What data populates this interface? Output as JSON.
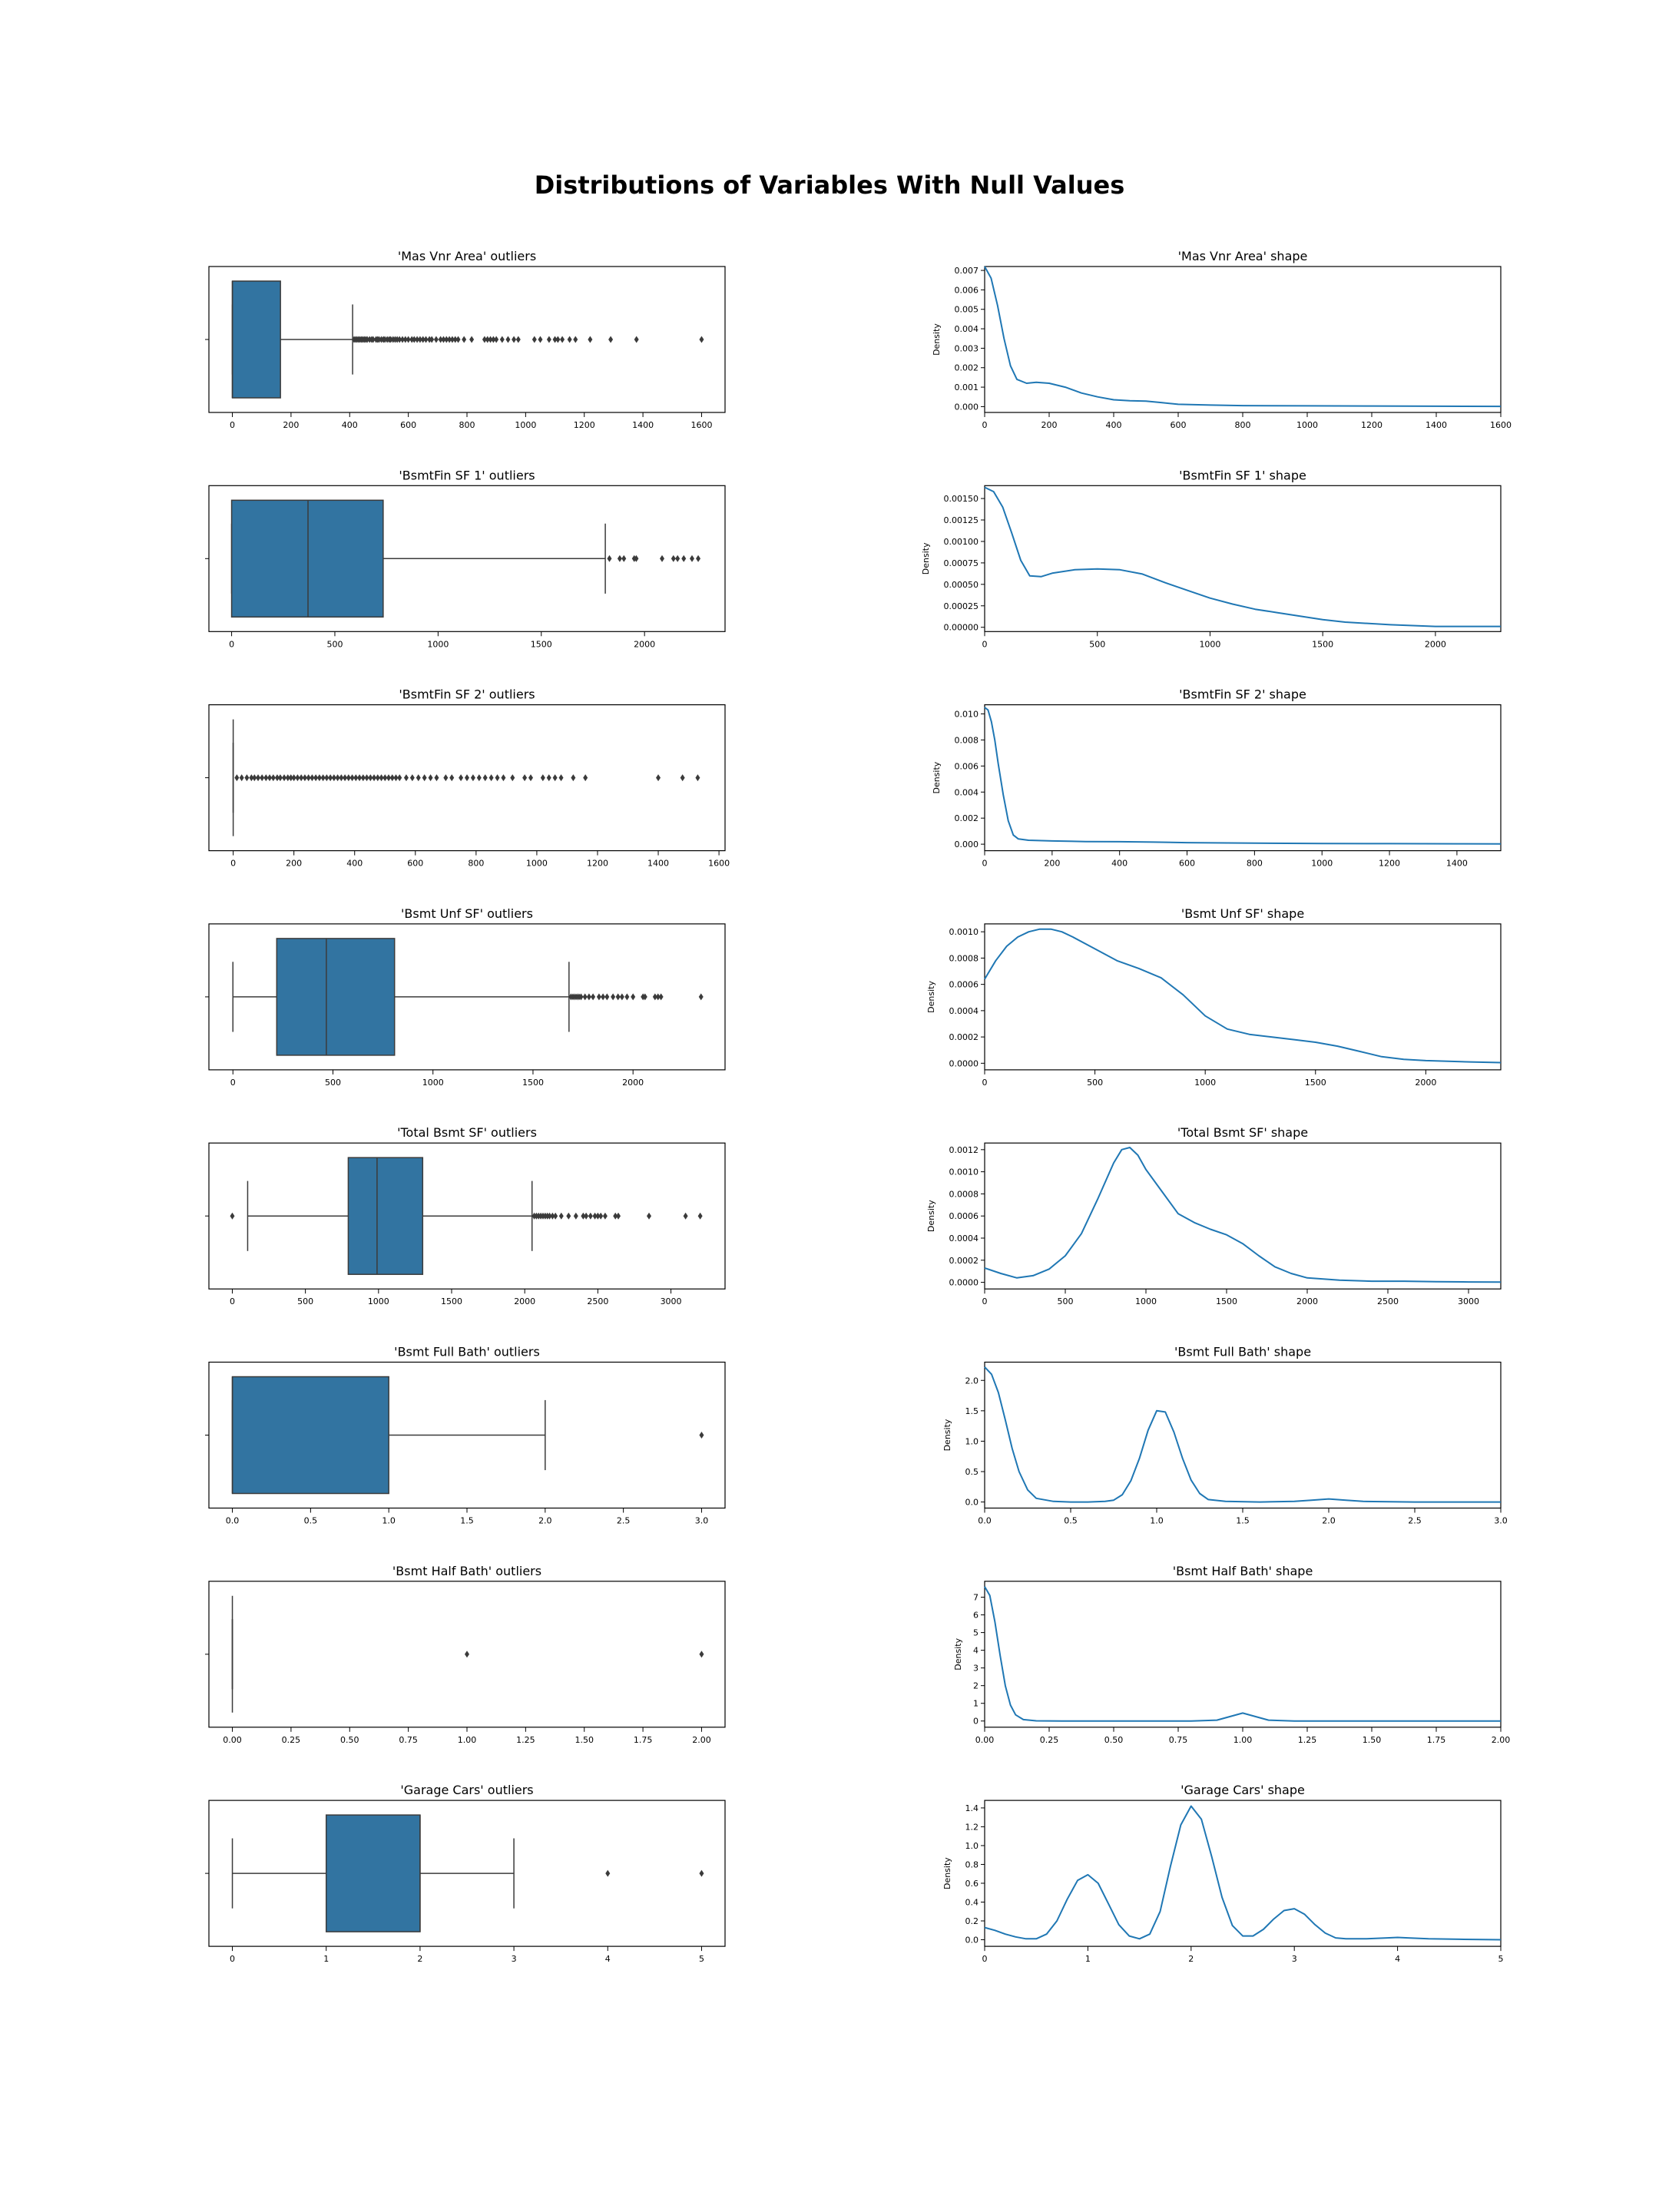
{
  "figure": {
    "title": "Distributions of Variables With Null Values",
    "colors": {
      "box_fill": "#3274a1",
      "kde_line": "#1f77b4",
      "ink": "#3b3b3b"
    }
  },
  "chart_data": [
    {
      "type": "box",
      "title": "'Mas Vnr Area' outliers",
      "xlim": [
        -80,
        1680
      ],
      "xticks": [
        0,
        200,
        400,
        600,
        800,
        1000,
        1200,
        1400,
        1600
      ],
      "tick_labels": [
        "0",
        "200",
        "400",
        "600",
        "800",
        "1000",
        "1200",
        "1400",
        "1600"
      ],
      "box": {
        "whisker_low": 0,
        "q1": 0,
        "median": 0,
        "q3": 164,
        "whisker_high": 410
      },
      "outliers": [
        415,
        420,
        425,
        430,
        435,
        440,
        445,
        450,
        455,
        460,
        468,
        475,
        480,
        490,
        495,
        500,
        508,
        515,
        520,
        528,
        535,
        540,
        548,
        555,
        562,
        570,
        580,
        590,
        600,
        612,
        620,
        630,
        640,
        650,
        660,
        672,
        680,
        695,
        710,
        720,
        730,
        740,
        750,
        760,
        770,
        790,
        816,
        860,
        870,
        880,
        890,
        900,
        920,
        940,
        960,
        975,
        1030,
        1050,
        1080,
        1100,
        1110,
        1125,
        1150,
        1170,
        1220,
        1290,
        1378,
        1600
      ]
    },
    {
      "type": "line",
      "title": "'Mas Vnr Area' shape",
      "ylabel": "Density",
      "xlim": [
        0,
        1600
      ],
      "ylim": [
        -0.0003,
        0.0072
      ],
      "xticks": [
        0,
        200,
        400,
        600,
        800,
        1000,
        1200,
        1400,
        1600
      ],
      "xtick_labels": [
        "0",
        "200",
        "400",
        "600",
        "800",
        "1000",
        "1200",
        "1400",
        "1600"
      ],
      "yticks": [
        0,
        0.001,
        0.002,
        0.003,
        0.004,
        0.005,
        0.006,
        0.007
      ],
      "ytick_labels": [
        "0.000",
        "0.001",
        "0.002",
        "0.003",
        "0.004",
        "0.005",
        "0.006",
        "0.007"
      ],
      "x": [
        0,
        20,
        40,
        60,
        80,
        100,
        130,
        160,
        200,
        250,
        300,
        350,
        400,
        450,
        500,
        550,
        600,
        700,
        800,
        1000,
        1200,
        1400,
        1600
      ],
      "y": [
        0.0072,
        0.0066,
        0.0052,
        0.0035,
        0.0021,
        0.0014,
        0.0012,
        0.00125,
        0.0012,
        0.001,
        0.0007,
        0.0005,
        0.00035,
        0.0003,
        0.00028,
        0.0002,
        0.00012,
        8e-05,
        5e-05,
        4e-05,
        3e-05,
        2e-05,
        1e-05
      ]
    },
    {
      "type": "box",
      "title": "'BsmtFin SF 1' outliers",
      "xlim": [
        -110,
        2390
      ],
      "xticks": [
        0,
        500,
        1000,
        1500,
        2000
      ],
      "tick_labels": [
        "0",
        "500",
        "1000",
        "1500",
        "2000"
      ],
      "box": {
        "whisker_low": 0,
        "q1": 0,
        "median": 370,
        "q3": 734,
        "whisker_high": 1810
      },
      "outliers": [
        1830,
        1880,
        1900,
        1950,
        1960,
        2085,
        2140,
        2160,
        2190,
        2230,
        2260
      ]
    },
    {
      "type": "line",
      "title": "'BsmtFin SF 1' shape",
      "ylabel": "Density",
      "xlim": [
        0,
        2290
      ],
      "ylim": [
        -5e-05,
        0.00165
      ],
      "xticks": [
        0,
        500,
        1000,
        1500,
        2000
      ],
      "xtick_labels": [
        "0",
        "500",
        "1000",
        "1500",
        "2000"
      ],
      "yticks": [
        0,
        0.00025,
        0.0005,
        0.00075,
        0.001,
        0.00125,
        0.0015
      ],
      "ytick_labels": [
        "0.00000",
        "0.00025",
        "0.00050",
        "0.00075",
        "0.00100",
        "0.00125",
        "0.00150"
      ],
      "x": [
        0,
        40,
        80,
        120,
        160,
        200,
        250,
        300,
        400,
        500,
        600,
        700,
        800,
        900,
        1000,
        1100,
        1200,
        1300,
        1400,
        1500,
        1600,
        1800,
        2000,
        2290
      ],
      "y": [
        0.00163,
        0.00158,
        0.0014,
        0.0011,
        0.00078,
        0.0006,
        0.00059,
        0.00063,
        0.00067,
        0.00068,
        0.00067,
        0.00062,
        0.00052,
        0.00043,
        0.00034,
        0.00027,
        0.00021,
        0.00017,
        0.00013,
        9e-05,
        6e-05,
        3e-05,
        1e-05,
        1e-05
      ]
    },
    {
      "type": "box",
      "title": "'BsmtFin SF 2' outliers",
      "xlim": [
        -80,
        1620
      ],
      "xticks": [
        0,
        200,
        400,
        600,
        800,
        1000,
        1200,
        1400,
        1600
      ],
      "tick_labels": [
        "0",
        "200",
        "400",
        "600",
        "800",
        "1000",
        "1200",
        "1400",
        "1600"
      ],
      "box": {
        "whisker_low": 0,
        "q1": 0,
        "median": 0,
        "q3": 0,
        "whisker_high": 0
      },
      "outliers": [
        12,
        28,
        45,
        60,
        70,
        82,
        95,
        108,
        120,
        132,
        145,
        155,
        168,
        180,
        190,
        200,
        212,
        224,
        236,
        248,
        260,
        272,
        284,
        296,
        308,
        320,
        332,
        344,
        356,
        368,
        380,
        392,
        404,
        416,
        428,
        440,
        452,
        464,
        476,
        488,
        500,
        512,
        524,
        536,
        548,
        570,
        590,
        610,
        630,
        650,
        670,
        700,
        720,
        750,
        770,
        790,
        810,
        830,
        850,
        870,
        890,
        920,
        960,
        980,
        1020,
        1040,
        1060,
        1080,
        1120,
        1160,
        1400,
        1480,
        1530
      ]
    },
    {
      "type": "line",
      "title": "'BsmtFin SF 2' shape",
      "ylabel": "Density",
      "xlim": [
        0,
        1530
      ],
      "ylim": [
        -0.0005,
        0.0107
      ],
      "xticks": [
        0,
        200,
        400,
        600,
        800,
        1000,
        1200,
        1400
      ],
      "xtick_labels": [
        "0",
        "200",
        "400",
        "600",
        "800",
        "1000",
        "1200",
        "1400"
      ],
      "yticks": [
        0,
        0.002,
        0.004,
        0.006,
        0.008,
        0.01
      ],
      "ytick_labels": [
        "0.000",
        "0.002",
        "0.004",
        "0.006",
        "0.008",
        "0.010"
      ],
      "x": [
        0,
        10,
        20,
        30,
        40,
        55,
        70,
        85,
        100,
        130,
        160,
        200,
        300,
        400,
        500,
        600,
        800,
        1000,
        1200,
        1400,
        1530
      ],
      "y": [
        0.0105,
        0.0103,
        0.0094,
        0.008,
        0.0062,
        0.0038,
        0.0018,
        0.0007,
        0.0004,
        0.0003,
        0.00028,
        0.00025,
        0.0002,
        0.00019,
        0.00016,
        0.00012,
        8e-05,
        5e-05,
        4e-05,
        3e-05,
        2e-05
      ]
    },
    {
      "type": "box",
      "title": "'Bsmt Unf SF' outliers",
      "xlim": [
        -120,
        2460
      ],
      "xticks": [
        0,
        500,
        1000,
        1500,
        2000
      ],
      "tick_labels": [
        "0",
        "500",
        "1000",
        "1500",
        "2000"
      ],
      "box": {
        "whisker_low": 0,
        "q1": 219,
        "median": 467,
        "q3": 808,
        "whisker_high": 1680
      },
      "outliers": [
        1690,
        1700,
        1710,
        1720,
        1730,
        1740,
        1760,
        1780,
        1800,
        1830,
        1850,
        1870,
        1900,
        1925,
        1945,
        1970,
        2000,
        2050,
        2060,
        2110,
        2125,
        2140,
        2340
      ]
    },
    {
      "type": "line",
      "title": "'Bsmt Unf SF' shape",
      "ylabel": "Density",
      "xlim": [
        0,
        2340
      ],
      "ylim": [
        -5e-05,
        0.00106
      ],
      "xticks": [
        0,
        500,
        1000,
        1500,
        2000
      ],
      "xtick_labels": [
        "0",
        "500",
        "1000",
        "1500",
        "2000"
      ],
      "yticks": [
        0,
        0.0002,
        0.0004,
        0.0006,
        0.0008,
        0.001
      ],
      "ytick_labels": [
        "0.0000",
        "0.0002",
        "0.0004",
        "0.0006",
        "0.0008",
        "0.0010"
      ],
      "x": [
        0,
        50,
        100,
        150,
        200,
        250,
        300,
        350,
        400,
        500,
        600,
        700,
        800,
        900,
        1000,
        1100,
        1200,
        1300,
        1400,
        1500,
        1600,
        1700,
        1800,
        1900,
        2000,
        2200,
        2340
      ],
      "y": [
        0.00064,
        0.00078,
        0.00089,
        0.00096,
        0.001,
        0.00102,
        0.00102,
        0.001,
        0.00096,
        0.00087,
        0.00078,
        0.00072,
        0.00065,
        0.00052,
        0.00036,
        0.00026,
        0.00022,
        0.0002,
        0.00018,
        0.00016,
        0.00013,
        9e-05,
        5e-05,
        3e-05,
        2e-05,
        1e-05,
        5e-06
      ]
    },
    {
      "type": "box",
      "title": "'Total Bsmt SF' outliers",
      "xlim": [
        -160,
        3370
      ],
      "xticks": [
        0,
        500,
        1000,
        1500,
        2000,
        2500,
        3000
      ],
      "tick_labels": [
        "0",
        "500",
        "1000",
        "1500",
        "2000",
        "2500",
        "3000"
      ],
      "box": {
        "whisker_low": 105,
        "q1": 793,
        "median": 990,
        "q3": 1302,
        "whisker_high": 2050
      },
      "outliers": [
        0,
        2065,
        2080,
        2095,
        2110,
        2125,
        2140,
        2155,
        2170,
        2190,
        2210,
        2250,
        2300,
        2350,
        2400,
        2420,
        2450,
        2480,
        2500,
        2520,
        2550,
        2620,
        2640,
        2850,
        3100,
        3200
      ]
    },
    {
      "type": "line",
      "title": "'Total Bsmt SF' shape",
      "ylabel": "Density",
      "xlim": [
        0,
        3200
      ],
      "ylim": [
        -6e-05,
        0.00126
      ],
      "xticks": [
        0,
        500,
        1000,
        1500,
        2000,
        2500,
        3000
      ],
      "xtick_labels": [
        "0",
        "500",
        "1000",
        "1500",
        "2000",
        "2500",
        "3000"
      ],
      "yticks": [
        0,
        0.0002,
        0.0004,
        0.0006,
        0.0008,
        0.001,
        0.0012
      ],
      "ytick_labels": [
        "0.0000",
        "0.0002",
        "0.0004",
        "0.0006",
        "0.0008",
        "0.0010",
        "0.0012"
      ],
      "x": [
        0,
        100,
        200,
        300,
        400,
        500,
        600,
        700,
        800,
        850,
        900,
        950,
        1000,
        1100,
        1200,
        1300,
        1400,
        1500,
        1600,
        1700,
        1800,
        1900,
        2000,
        2200,
        2400,
        2600,
        2800,
        3000,
        3200
      ],
      "y": [
        0.00013,
        8e-05,
        4e-05,
        6e-05,
        0.00012,
        0.00024,
        0.00044,
        0.00075,
        0.00108,
        0.0012,
        0.00122,
        0.00115,
        0.00102,
        0.00082,
        0.00062,
        0.00054,
        0.00048,
        0.00043,
        0.00035,
        0.00024,
        0.00014,
        8e-05,
        4e-05,
        2e-05,
        1e-05,
        1e-05,
        5e-06,
        3e-06,
        2e-06
      ]
    },
    {
      "type": "box",
      "title": "'Bsmt Full Bath' outliers",
      "xlim": [
        -0.15,
        3.15
      ],
      "xticks": [
        0,
        0.5,
        1,
        1.5,
        2,
        2.5,
        3
      ],
      "tick_labels": [
        "0.0",
        "0.5",
        "1.0",
        "1.5",
        "2.0",
        "2.5",
        "3.0"
      ],
      "box": {
        "whisker_low": 0,
        "q1": 0,
        "median": 0,
        "q3": 1,
        "whisker_high": 2
      },
      "outliers": [
        3
      ]
    },
    {
      "type": "line",
      "title": "'Bsmt Full Bath' shape",
      "ylabel": "Density",
      "xlim": [
        0,
        3
      ],
      "ylim": [
        -0.1,
        2.3
      ],
      "xticks": [
        0,
        0.5,
        1,
        1.5,
        2,
        2.5,
        3
      ],
      "xtick_labels": [
        "0.0",
        "0.5",
        "1.0",
        "1.5",
        "2.0",
        "2.5",
        "3.0"
      ],
      "yticks": [
        0,
        0.5,
        1,
        1.5,
        2
      ],
      "ytick_labels": [
        "0.0",
        "0.5",
        "1.0",
        "1.5",
        "2.0"
      ],
      "x": [
        0,
        0.04,
        0.08,
        0.12,
        0.16,
        0.2,
        0.25,
        0.3,
        0.4,
        0.5,
        0.6,
        0.7,
        0.75,
        0.8,
        0.85,
        0.9,
        0.95,
        1,
        1.05,
        1.1,
        1.15,
        1.2,
        1.25,
        1.3,
        1.4,
        1.6,
        1.8,
        1.9,
        2,
        2.1,
        2.2,
        2.5,
        3
      ],
      "y": [
        2.22,
        2.1,
        1.8,
        1.35,
        0.88,
        0.5,
        0.2,
        0.06,
        0.01,
        0,
        0,
        0.01,
        0.03,
        0.12,
        0.35,
        0.72,
        1.18,
        1.5,
        1.48,
        1.15,
        0.72,
        0.36,
        0.14,
        0.04,
        0.01,
        0,
        0.01,
        0.03,
        0.05,
        0.03,
        0.01,
        0,
        0
      ]
    },
    {
      "type": "box",
      "title": "'Bsmt Half Bath' outliers",
      "xlim": [
        -0.1,
        2.1
      ],
      "xticks": [
        0,
        0.25,
        0.5,
        0.75,
        1,
        1.25,
        1.5,
        1.75,
        2
      ],
      "tick_labels": [
        "0.00",
        "0.25",
        "0.50",
        "0.75",
        "1.00",
        "1.25",
        "1.50",
        "1.75",
        "2.00"
      ],
      "box": {
        "whisker_low": 0,
        "q1": 0,
        "median": 0,
        "q3": 0,
        "whisker_high": 0
      },
      "outliers": [
        1,
        2
      ]
    },
    {
      "type": "line",
      "title": "'Bsmt Half Bath' shape",
      "ylabel": "Density",
      "xlim": [
        0,
        2
      ],
      "ylim": [
        -0.35,
        7.9
      ],
      "xticks": [
        0,
        0.25,
        0.5,
        0.75,
        1,
        1.25,
        1.5,
        1.75,
        2
      ],
      "xtick_labels": [
        "0.00",
        "0.25",
        "0.50",
        "0.75",
        "1.00",
        "1.25",
        "1.50",
        "1.75",
        "2.00"
      ],
      "yticks": [
        0,
        1,
        2,
        3,
        4,
        5,
        6,
        7
      ],
      "ytick_labels": [
        "0",
        "1",
        "2",
        "3",
        "4",
        "5",
        "6",
        "7"
      ],
      "x": [
        0,
        0.02,
        0.04,
        0.06,
        0.08,
        0.1,
        0.12,
        0.15,
        0.2,
        0.3,
        0.5,
        0.8,
        0.9,
        0.95,
        1,
        1.05,
        1.1,
        1.2,
        1.5,
        2
      ],
      "y": [
        7.6,
        7.1,
        5.6,
        3.7,
        2,
        0.9,
        0.35,
        0.08,
        0.01,
        0,
        0,
        0,
        0.05,
        0.25,
        0.45,
        0.25,
        0.05,
        0,
        0,
        0
      ]
    },
    {
      "type": "box",
      "title": "'Garage Cars' outliers",
      "xlim": [
        -0.25,
        5.25
      ],
      "xticks": [
        0,
        1,
        2,
        3,
        4,
        5
      ],
      "tick_labels": [
        "0",
        "1",
        "2",
        "3",
        "4",
        "5"
      ],
      "box": {
        "whisker_low": 0,
        "q1": 1,
        "median": 2,
        "q3": 2,
        "whisker_high": 3
      },
      "outliers": [
        4,
        5
      ]
    },
    {
      "type": "line",
      "title": "'Garage Cars' shape",
      "ylabel": "Density",
      "xlim": [
        0,
        5
      ],
      "ylim": [
        -0.07,
        1.48
      ],
      "xticks": [
        0,
        1,
        2,
        3,
        4,
        5
      ],
      "xtick_labels": [
        "0",
        "1",
        "2",
        "3",
        "4",
        "5"
      ],
      "yticks": [
        0,
        0.2,
        0.4,
        0.6,
        0.8,
        1,
        1.2,
        1.4
      ],
      "ytick_labels": [
        "0.0",
        "0.2",
        "0.4",
        "0.6",
        "0.8",
        "1.0",
        "1.2",
        "1.4"
      ],
      "x": [
        0,
        0.1,
        0.2,
        0.3,
        0.4,
        0.5,
        0.6,
        0.7,
        0.8,
        0.9,
        1,
        1.1,
        1.2,
        1.3,
        1.4,
        1.5,
        1.6,
        1.7,
        1.8,
        1.9,
        2,
        2.1,
        2.2,
        2.3,
        2.4,
        2.5,
        2.6,
        2.7,
        2.8,
        2.9,
        3,
        3.1,
        3.2,
        3.3,
        3.4,
        3.5,
        3.7,
        3.9,
        4,
        4.1,
        4.3,
        4.6,
        5
      ],
      "y": [
        0.13,
        0.1,
        0.06,
        0.03,
        0.01,
        0.01,
        0.06,
        0.2,
        0.43,
        0.63,
        0.69,
        0.6,
        0.38,
        0.16,
        0.04,
        0.01,
        0.06,
        0.3,
        0.78,
        1.22,
        1.42,
        1.28,
        0.88,
        0.45,
        0.15,
        0.04,
        0.04,
        0.11,
        0.22,
        0.31,
        0.33,
        0.27,
        0.16,
        0.07,
        0.02,
        0.01,
        0.01,
        0.02,
        0.025,
        0.02,
        0.01,
        0.005,
        0
      ]
    }
  ]
}
